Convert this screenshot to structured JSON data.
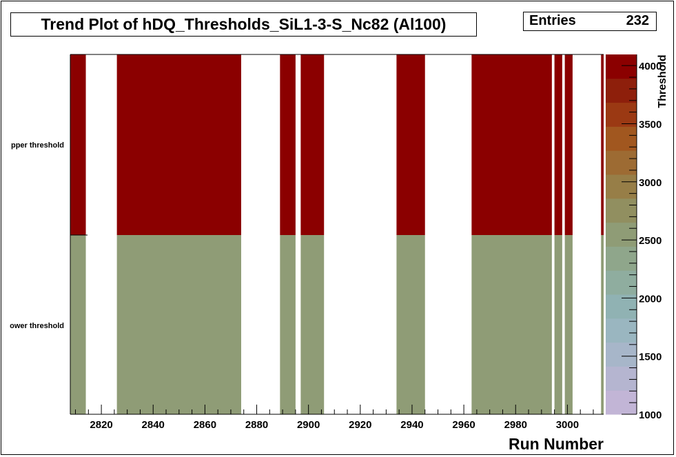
{
  "title": "Trend Plot of hDQ_Thresholds_SiL1-3-S_Nc82 (Al100)",
  "stats": {
    "label": "Entries",
    "value": "232"
  },
  "chart_data": {
    "type": "heatmap",
    "xlabel": "Run Number",
    "zlabel": "Threshold",
    "xlim": [
      2808,
      3014
    ],
    "x_ticks": [
      2820,
      2840,
      2860,
      2880,
      2900,
      2920,
      2940,
      2960,
      2980,
      3000
    ],
    "y_categories": [
      "upper threshold",
      "lower threshold"
    ],
    "y_tick_labels": [
      "pper threshold",
      "ower threshold"
    ],
    "z_ticks": [
      1000,
      1500,
      2000,
      2500,
      3000,
      3500,
      4000
    ],
    "zlim": [
      1000,
      4096
    ],
    "value_upper": 4095,
    "value_lower": 2650,
    "filled_run_ranges": [
      [
        2808,
        2814
      ],
      [
        2826,
        2874
      ],
      [
        2889,
        2895
      ],
      [
        2897,
        2906
      ],
      [
        2934,
        2945
      ],
      [
        2963,
        2994
      ],
      [
        2995,
        2998
      ],
      [
        2999,
        3002
      ],
      [
        3013,
        3014
      ]
    ],
    "palette": [
      "#c2b5d6",
      "#b5b5d0",
      "#a7b6c9",
      "#9ab6c0",
      "#90b2b3",
      "#8fad9f",
      "#8fa68b",
      "#8f9c76",
      "#918f60",
      "#977e47",
      "#9d6b33",
      "#a1571f",
      "#9b3913",
      "#8e1f0b",
      "#8b0000"
    ]
  }
}
